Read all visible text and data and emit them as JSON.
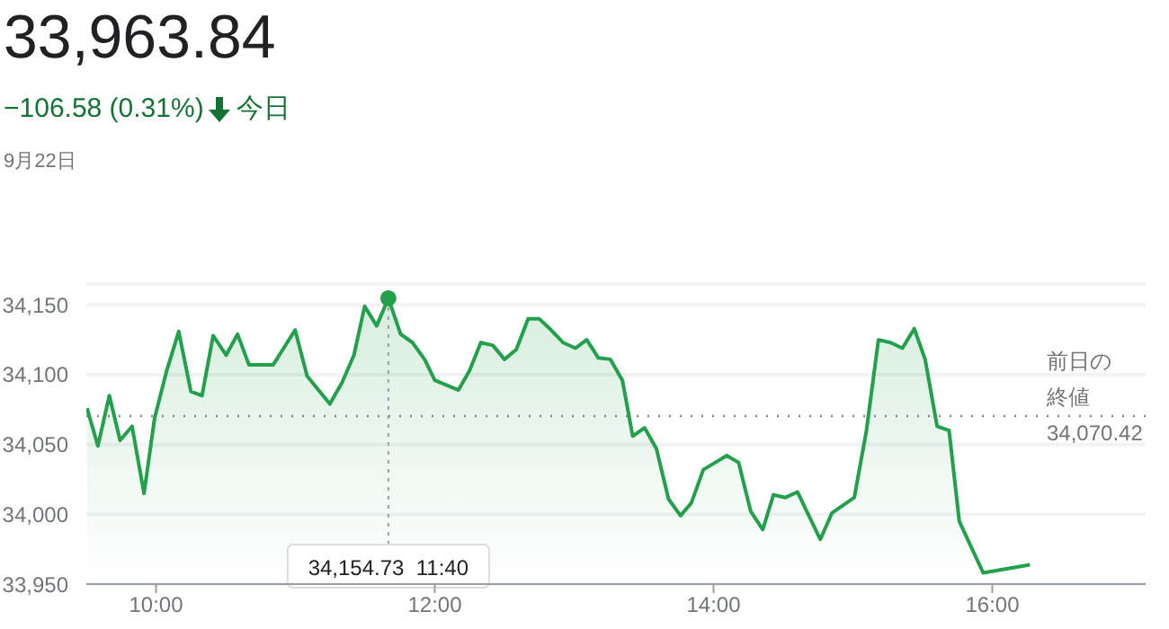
{
  "chart_data": {
    "type": "area",
    "title": "33,963.84",
    "subtitle": "−106.58 (0.31%)",
    "annotations": [
      "今日",
      "9月22日",
      "34,070.42",
      {
        "text": "34,154.73  11:40",
        "x": 11.667,
        "y": 34154.73
      }
    ],
    "series": [
      {
        "color": "#22a04b",
        "x": [
          9.505,
          9.583,
          9.665,
          9.742,
          9.828,
          9.914,
          9.99,
          10.077,
          10.163,
          10.25,
          10.33,
          10.41,
          10.503,
          10.585,
          10.667,
          10.84,
          10.998,
          11.084,
          11.247,
          11.333,
          11.42,
          11.497,
          11.583,
          11.667,
          11.755,
          11.84,
          11.927,
          12.0,
          12.17,
          12.25,
          12.33,
          12.417,
          12.5,
          12.585,
          12.67,
          12.75,
          12.835,
          12.92,
          13.01,
          13.09,
          13.174,
          13.26,
          13.346,
          13.42,
          13.505,
          13.59,
          13.677,
          13.763,
          13.84,
          13.927,
          14.095,
          14.18,
          14.267,
          14.353,
          14.43,
          14.516,
          14.602,
          14.766,
          14.85,
          15.01,
          15.097,
          15.183,
          15.27,
          15.355,
          15.44,
          15.518,
          15.604,
          15.69,
          15.763,
          15.935,
          16.27
        ],
        "values": [
          34076,
          34049,
          34085,
          34053,
          34063,
          34015,
          34069,
          34103,
          34131,
          34088,
          34085,
          34128,
          34114,
          34129,
          34107,
          34107,
          34132,
          34099,
          34079,
          34094,
          34114,
          34149,
          34135,
          34154.73,
          34129,
          34123,
          34111,
          34096,
          34089,
          34103,
          34123,
          34121,
          34111,
          34118,
          34140,
          34140,
          34132,
          34123,
          34119,
          34125,
          34112,
          34111,
          34096,
          34056,
          34062,
          34047,
          34011,
          33999,
          34008,
          34032,
          34042,
          34037,
          34002,
          33989,
          34014,
          34012,
          34016,
          33982,
          34001,
          34012,
          34060,
          34125,
          34123,
          34119,
          34133,
          34111,
          34063,
          34060,
          33995,
          33958,
          33963.84
        ]
      }
    ],
    "xlim": [
      9.5,
      17.1
    ],
    "xticks": [
      {
        "value": 10,
        "label": "10:00"
      },
      {
        "value": 12,
        "label": "12:00"
      },
      {
        "value": 14,
        "label": "14:00"
      },
      {
        "value": 16,
        "label": "16:00"
      }
    ],
    "ylim": [
      33950,
      34165
    ],
    "yticks": [
      {
        "value": 33950,
        "label": "33,950"
      },
      {
        "value": 34000,
        "label": "34,000"
      },
      {
        "value": 34050,
        "label": "34,050"
      },
      {
        "value": 34100,
        "label": "34,100"
      },
      {
        "value": 34150,
        "label": "34,150"
      }
    ],
    "grid": "y",
    "marker": "none",
    "line_style": "solid",
    "ref_lines": [
      {
        "axis": "y",
        "value": 34070.42,
        "label": "前日の終値",
        "line_style": "dotted",
        "color": "#80868b"
      }
    ]
  }
}
